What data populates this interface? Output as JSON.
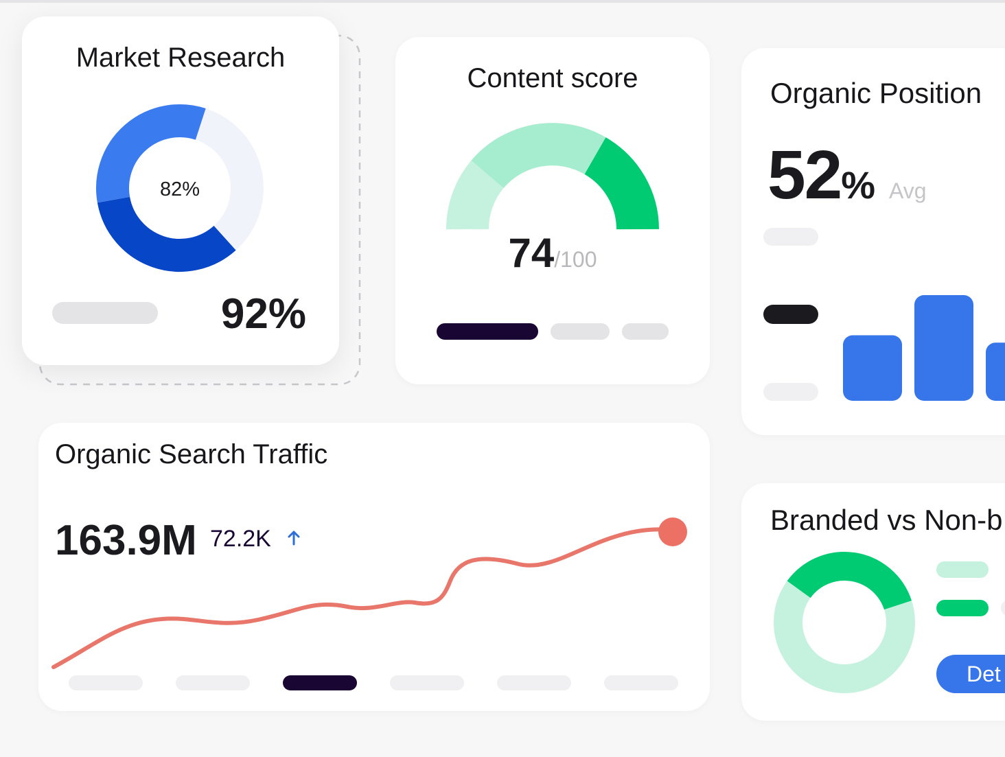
{
  "colors": {
    "blue_light": "#3b7bf0",
    "blue_dark": "#0846c8",
    "blue_track": "#f0f4fa",
    "gauge_light": "#c5f2de",
    "gauge_mid": "#a6edcf",
    "gauge_dark": "#00cb73",
    "bar_blue": "#3675ea",
    "traffic_line": "#e8766a",
    "ink": "#1b1b1f",
    "pill_dark": "#1a0633",
    "pill_gray": "#e4e4e6",
    "pill_light": "#f0f0f2"
  },
  "market_research": {
    "title": "Market Research",
    "donut_label": "82%",
    "donut_value": 0.82,
    "big_value": "92%"
  },
  "content_score": {
    "title": "Content score",
    "score": "74",
    "max": "/100",
    "tabs": [
      "active",
      "inactive",
      "inactive"
    ]
  },
  "organic_position": {
    "title": "Organic Position",
    "value": "52",
    "unit": "%",
    "suffix": "Avg",
    "bars": [
      {
        "level": 0.62
      },
      {
        "level": 1.0
      },
      {
        "level": 0.55
      }
    ]
  },
  "organic_traffic": {
    "title": "Organic Search Traffic",
    "value": "163.9M",
    "delta": "72.2K",
    "trend_icon": "arrow-up-icon",
    "tabs": [
      "inactive",
      "inactive",
      "active",
      "inactive",
      "inactive",
      "inactive"
    ]
  },
  "branded": {
    "title": "Branded vs Non-b",
    "button_label": "Det",
    "branded_share": 0.35
  }
}
